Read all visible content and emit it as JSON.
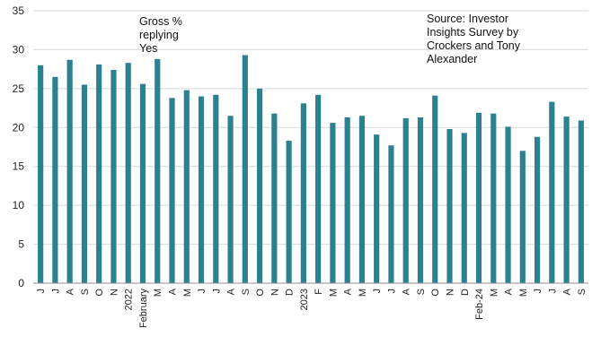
{
  "chart_data": {
    "type": "bar",
    "categories": [
      "J",
      "J",
      "A",
      "S",
      "O",
      "N",
      "2022",
      "February",
      "M",
      "A",
      "M",
      "J",
      "J",
      "A",
      "S",
      "O",
      "N",
      "D",
      "2023",
      "F",
      "M",
      "A",
      "M",
      "J",
      "J",
      "A",
      "S",
      "O",
      "N",
      "D",
      "Feb-24",
      "M",
      "A",
      "M",
      "J",
      "J",
      "A",
      "S"
    ],
    "values": [
      28.0,
      26.5,
      28.7,
      25.5,
      28.1,
      27.4,
      28.3,
      25.6,
      28.8,
      23.8,
      24.8,
      24.0,
      24.2,
      21.5,
      29.3,
      25.0,
      21.8,
      18.3,
      23.1,
      24.2,
      20.6,
      21.3,
      21.5,
      19.1,
      17.7,
      21.2,
      21.3,
      24.1,
      19.8,
      19.3,
      21.9,
      21.8,
      20.1,
      17.0,
      18.8,
      23.3,
      21.4,
      20.9
    ],
    "ylim": [
      0,
      35
    ],
    "yticks": [
      0,
      5,
      10,
      15,
      20,
      25,
      30,
      35
    ],
    "grid": true,
    "bar_color": "#2b8190",
    "annotations": {
      "series_note": "Gross %\nreplying\nYes",
      "source_note": "Source: Investor\nInsights Survey by\nCrockers and Tony\nAlexander"
    }
  }
}
